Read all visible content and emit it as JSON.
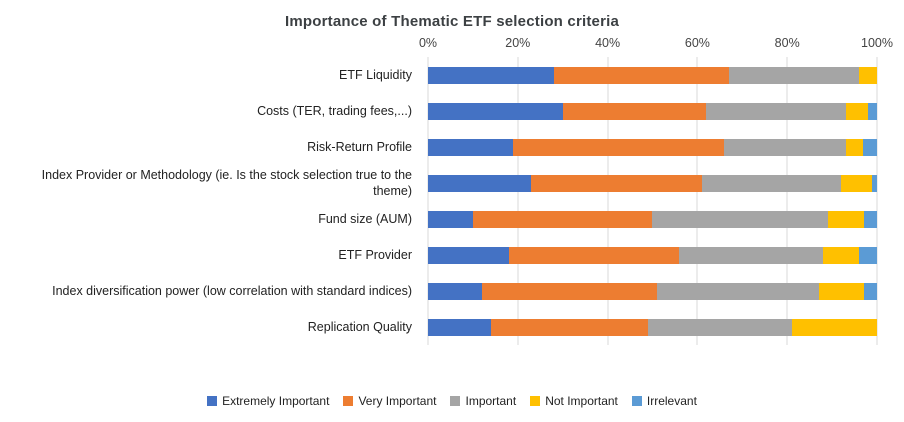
{
  "chart_data": {
    "type": "bar",
    "orientation": "horizontal",
    "stacked": true,
    "title": "Importance of Thematic ETF selection criteria",
    "xlabel": "",
    "ylabel": "",
    "xlim": [
      0,
      100
    ],
    "x_ticks": [
      "0%",
      "20%",
      "40%",
      "60%",
      "80%",
      "100%"
    ],
    "grid": true,
    "legend_position": "bottom",
    "categories": [
      "ETF Liquidity",
      "Costs (TER, trading fees,...)",
      "Risk-Return Profile",
      "Index Provider or Methodology (ie. Is the stock selection true to the theme)",
      "Fund size (AUM)",
      "ETF Provider",
      "Index diversification power (low correlation with standard indices)",
      "Replication Quality"
    ],
    "series": [
      {
        "name": "Extremely Important",
        "color": "#4472C4",
        "values": [
          28,
          30,
          19,
          23,
          10,
          18,
          12,
          14
        ]
      },
      {
        "name": "Very Important",
        "color": "#ED7D31",
        "values": [
          39,
          32,
          47,
          38,
          40,
          38,
          39,
          35
        ]
      },
      {
        "name": "Important",
        "color": "#A5A5A5",
        "values": [
          29,
          31,
          27,
          31,
          39,
          32,
          36,
          32
        ]
      },
      {
        "name": "Not Important",
        "color": "#FFC000",
        "values": [
          4,
          5,
          4,
          7,
          8,
          8,
          10,
          19
        ]
      },
      {
        "name": "Irrelevant",
        "color": "#5B9BD5",
        "values": [
          0,
          2,
          3,
          1,
          3,
          4,
          3,
          0
        ]
      }
    ]
  }
}
